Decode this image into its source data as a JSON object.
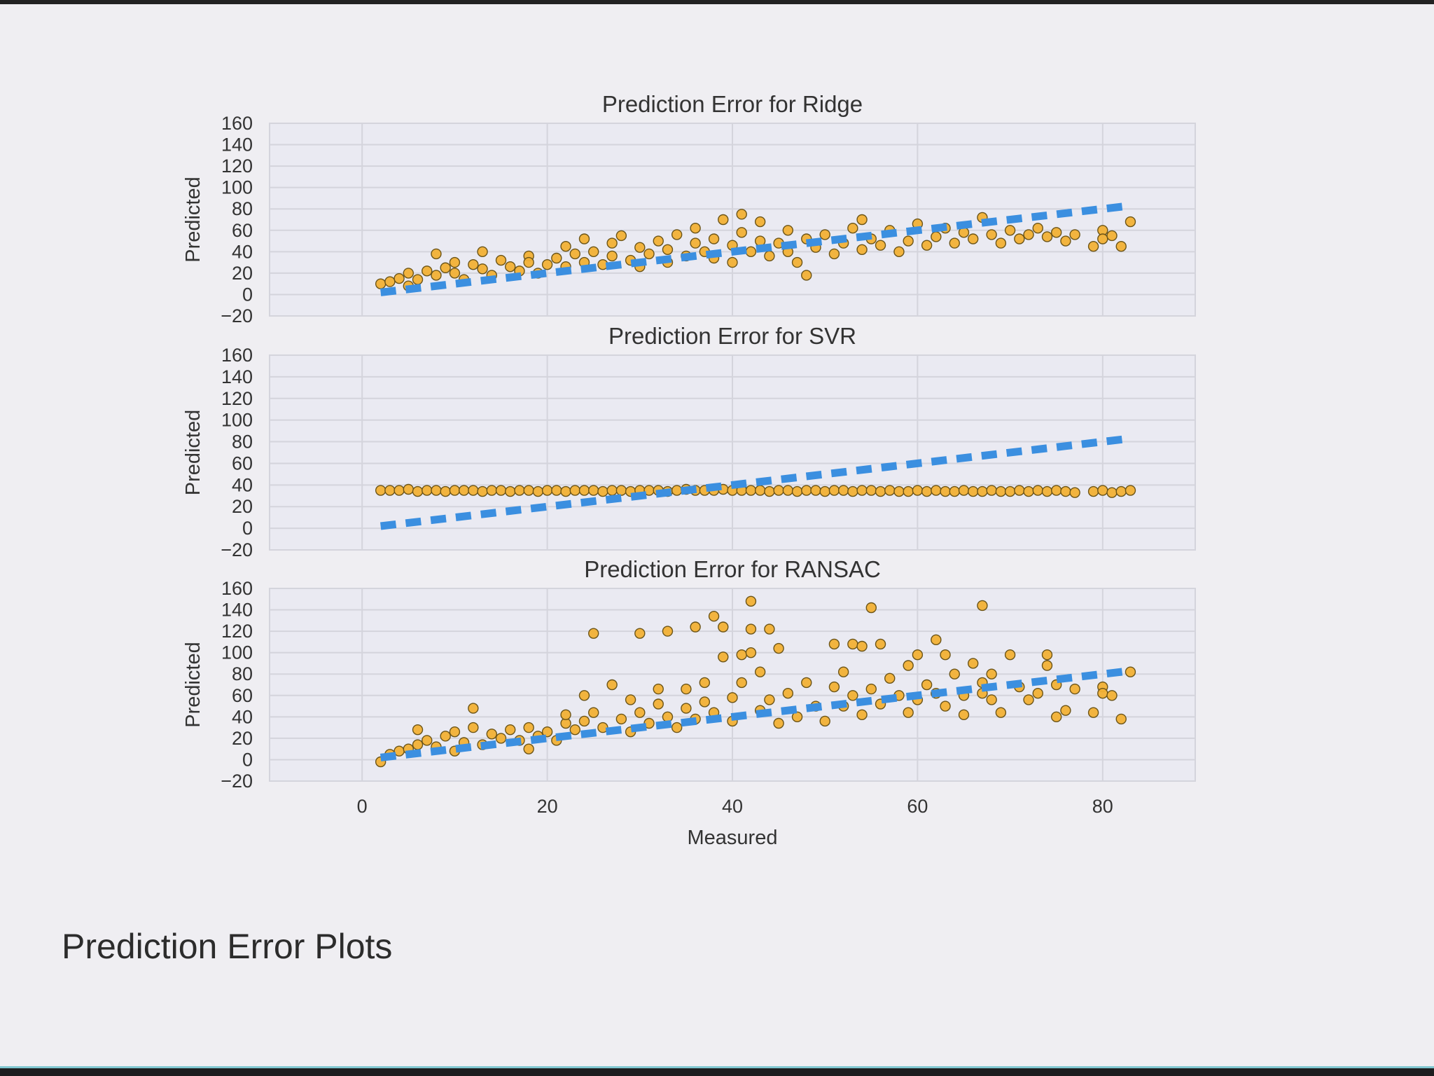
{
  "slide": {
    "caption": "Prediction Error Plots"
  },
  "colors": {
    "plot_bg": "#eaeaf2",
    "grid": "#d4d4dc",
    "point_fill": "#f2b135",
    "point_edge": "#6b5418",
    "identity_line": "#3b8fe0"
  },
  "chart_data": [
    {
      "type": "scatter",
      "title": "Prediction Error for Ridge",
      "xlabel": "",
      "ylabel": "Predicted",
      "xlim": [
        -10,
        90
      ],
      "ylim": [
        -20,
        160
      ],
      "xticks": [],
      "yticks": [
        "160",
        "140",
        "120",
        "100",
        "80",
        "60",
        "40",
        "20",
        "0",
        "−20"
      ],
      "grid": true,
      "identity_line": {
        "from": [
          2,
          2
        ],
        "to": [
          83,
          83
        ]
      },
      "points": [
        [
          2,
          10
        ],
        [
          3,
          12
        ],
        [
          4,
          15
        ],
        [
          5,
          20
        ],
        [
          5,
          8
        ],
        [
          6,
          14
        ],
        [
          7,
          22
        ],
        [
          8,
          38
        ],
        [
          8,
          18
        ],
        [
          9,
          25
        ],
        [
          10,
          20
        ],
        [
          10,
          30
        ],
        [
          11,
          14
        ],
        [
          12,
          28
        ],
        [
          13,
          24
        ],
        [
          13,
          40
        ],
        [
          14,
          18
        ],
        [
          15,
          32
        ],
        [
          16,
          26
        ],
        [
          17,
          22
        ],
        [
          18,
          36
        ],
        [
          18,
          30
        ],
        [
          19,
          20
        ],
        [
          20,
          28
        ],
        [
          21,
          34
        ],
        [
          22,
          26
        ],
        [
          22,
          45
        ],
        [
          23,
          38
        ],
        [
          24,
          30
        ],
        [
          24,
          52
        ],
        [
          25,
          40
        ],
        [
          26,
          28
        ],
        [
          27,
          48
        ],
        [
          27,
          36
        ],
        [
          28,
          55
        ],
        [
          29,
          32
        ],
        [
          30,
          44
        ],
        [
          30,
          26
        ],
        [
          31,
          38
        ],
        [
          32,
          50
        ],
        [
          33,
          42
        ],
        [
          33,
          30
        ],
        [
          34,
          56
        ],
        [
          35,
          36
        ],
        [
          36,
          48
        ],
        [
          36,
          62
        ],
        [
          37,
          40
        ],
        [
          38,
          34
        ],
        [
          38,
          52
        ],
        [
          39,
          70
        ],
        [
          40,
          46
        ],
        [
          40,
          30
        ],
        [
          41,
          58
        ],
        [
          41,
          75
        ],
        [
          42,
          40
        ],
        [
          43,
          50
        ],
        [
          43,
          68
        ],
        [
          44,
          36
        ],
        [
          45,
          48
        ],
        [
          46,
          40
        ],
        [
          46,
          60
        ],
        [
          47,
          30
        ],
        [
          48,
          52
        ],
        [
          48,
          18
        ],
        [
          49,
          44
        ],
        [
          50,
          56
        ],
        [
          51,
          38
        ],
        [
          52,
          48
        ],
        [
          53,
          62
        ],
        [
          54,
          42
        ],
        [
          54,
          70
        ],
        [
          55,
          52
        ],
        [
          56,
          46
        ],
        [
          57,
          60
        ],
        [
          58,
          40
        ],
        [
          59,
          50
        ],
        [
          60,
          66
        ],
        [
          61,
          46
        ],
        [
          62,
          54
        ],
        [
          63,
          62
        ],
        [
          64,
          48
        ],
        [
          65,
          58
        ],
        [
          66,
          52
        ],
        [
          67,
          72
        ],
        [
          68,
          56
        ],
        [
          69,
          48
        ],
        [
          70,
          60
        ],
        [
          71,
          52
        ],
        [
          72,
          56
        ],
        [
          73,
          62
        ],
        [
          74,
          54
        ],
        [
          75,
          58
        ],
        [
          76,
          50
        ],
        [
          77,
          56
        ],
        [
          79,
          45
        ],
        [
          80,
          60
        ],
        [
          80,
          52
        ],
        [
          81,
          55
        ],
        [
          82,
          45
        ],
        [
          83,
          68
        ]
      ]
    },
    {
      "type": "scatter",
      "title": "Prediction Error for SVR",
      "xlabel": "",
      "ylabel": "Predicted",
      "xlim": [
        -10,
        90
      ],
      "ylim": [
        -20,
        160
      ],
      "xticks": [],
      "yticks": [
        "160",
        "140",
        "120",
        "100",
        "80",
        "60",
        "40",
        "20",
        "0",
        "−20"
      ],
      "grid": true,
      "identity_line": {
        "from": [
          2,
          2
        ],
        "to": [
          83,
          83
        ]
      },
      "points": [
        [
          2,
          35
        ],
        [
          3,
          35
        ],
        [
          4,
          35
        ],
        [
          5,
          36
        ],
        [
          6,
          34
        ],
        [
          7,
          35
        ],
        [
          8,
          35
        ],
        [
          9,
          34
        ],
        [
          10,
          35
        ],
        [
          11,
          35
        ],
        [
          12,
          35
        ],
        [
          13,
          34
        ],
        [
          14,
          35
        ],
        [
          15,
          35
        ],
        [
          16,
          34
        ],
        [
          17,
          35
        ],
        [
          18,
          35
        ],
        [
          19,
          34
        ],
        [
          20,
          35
        ],
        [
          21,
          35
        ],
        [
          22,
          34
        ],
        [
          23,
          35
        ],
        [
          24,
          35
        ],
        [
          25,
          35
        ],
        [
          26,
          34
        ],
        [
          27,
          35
        ],
        [
          28,
          35
        ],
        [
          29,
          34
        ],
        [
          30,
          35
        ],
        [
          31,
          35
        ],
        [
          32,
          35
        ],
        [
          33,
          34
        ],
        [
          34,
          35
        ],
        [
          35,
          36
        ],
        [
          36,
          35
        ],
        [
          37,
          35
        ],
        [
          38,
          35
        ],
        [
          39,
          36
        ],
        [
          40,
          35
        ],
        [
          41,
          35
        ],
        [
          42,
          35
        ],
        [
          43,
          35
        ],
        [
          44,
          34
        ],
        [
          45,
          35
        ],
        [
          46,
          35
        ],
        [
          47,
          34
        ],
        [
          48,
          35
        ],
        [
          49,
          35
        ],
        [
          50,
          34
        ],
        [
          51,
          35
        ],
        [
          52,
          35
        ],
        [
          53,
          34
        ],
        [
          54,
          35
        ],
        [
          55,
          35
        ],
        [
          56,
          34
        ],
        [
          57,
          35
        ],
        [
          58,
          34
        ],
        [
          59,
          34
        ],
        [
          60,
          35
        ],
        [
          61,
          34
        ],
        [
          62,
          35
        ],
        [
          63,
          34
        ],
        [
          64,
          34
        ],
        [
          65,
          35
        ],
        [
          66,
          34
        ],
        [
          67,
          34
        ],
        [
          68,
          35
        ],
        [
          69,
          34
        ],
        [
          70,
          34
        ],
        [
          71,
          35
        ],
        [
          72,
          34
        ],
        [
          73,
          35
        ],
        [
          74,
          34
        ],
        [
          75,
          35
        ],
        [
          76,
          34
        ],
        [
          77,
          33
        ],
        [
          79,
          34
        ],
        [
          80,
          35
        ],
        [
          81,
          33
        ],
        [
          82,
          34
        ],
        [
          83,
          35
        ]
      ]
    },
    {
      "type": "scatter",
      "title": "Prediction Error for RANSAC",
      "xlabel": "Measured",
      "ylabel": "Predicted",
      "xlim": [
        -10,
        90
      ],
      "ylim": [
        -20,
        160
      ],
      "xticks": [
        "0",
        "20",
        "40",
        "60",
        "80"
      ],
      "yticks": [
        "160",
        "140",
        "120",
        "100",
        "80",
        "60",
        "40",
        "20",
        "0",
        "−20"
      ],
      "grid": true,
      "identity_line": {
        "from": [
          2,
          2
        ],
        "to": [
          83,
          83
        ]
      },
      "points": [
        [
          2,
          -2
        ],
        [
          3,
          5
        ],
        [
          4,
          8
        ],
        [
          5,
          10
        ],
        [
          6,
          28
        ],
        [
          6,
          14
        ],
        [
          7,
          18
        ],
        [
          8,
          12
        ],
        [
          9,
          22
        ],
        [
          10,
          8
        ],
        [
          10,
          26
        ],
        [
          11,
          16
        ],
        [
          12,
          30
        ],
        [
          12,
          48
        ],
        [
          13,
          14
        ],
        [
          14,
          24
        ],
        [
          15,
          20
        ],
        [
          16,
          28
        ],
        [
          17,
          18
        ],
        [
          18,
          10
        ],
        [
          18,
          30
        ],
        [
          19,
          22
        ],
        [
          20,
          26
        ],
        [
          21,
          18
        ],
        [
          22,
          34
        ],
        [
          22,
          42
        ],
        [
          23,
          28
        ],
        [
          24,
          60
        ],
        [
          24,
          36
        ],
        [
          25,
          118
        ],
        [
          25,
          44
        ],
        [
          26,
          30
        ],
        [
          27,
          70
        ],
        [
          28,
          38
        ],
        [
          29,
          26
        ],
        [
          29,
          56
        ],
        [
          30,
          118
        ],
        [
          30,
          44
        ],
        [
          31,
          34
        ],
        [
          32,
          52
        ],
        [
          32,
          66
        ],
        [
          33,
          40
        ],
        [
          33,
          120
        ],
        [
          34,
          30
        ],
        [
          35,
          66
        ],
        [
          35,
          48
        ],
        [
          36,
          124
        ],
        [
          36,
          38
        ],
        [
          37,
          72
        ],
        [
          37,
          54
        ],
        [
          38,
          134
        ],
        [
          38,
          44
        ],
        [
          39,
          124
        ],
        [
          39,
          96
        ],
        [
          40,
          58
        ],
        [
          40,
          36
        ],
        [
          41,
          98
        ],
        [
          41,
          72
        ],
        [
          42,
          148
        ],
        [
          42,
          122
        ],
        [
          42,
          100
        ],
        [
          43,
          82
        ],
        [
          43,
          46
        ],
        [
          44,
          122
        ],
        [
          44,
          56
        ],
        [
          45,
          104
        ],
        [
          45,
          34
        ],
        [
          46,
          62
        ],
        [
          47,
          40
        ],
        [
          48,
          72
        ],
        [
          49,
          50
        ],
        [
          50,
          36
        ],
        [
          51,
          108
        ],
        [
          51,
          68
        ],
        [
          52,
          82
        ],
        [
          52,
          50
        ],
        [
          53,
          108
        ],
        [
          53,
          60
        ],
        [
          54,
          106
        ],
        [
          54,
          42
        ],
        [
          55,
          142
        ],
        [
          55,
          66
        ],
        [
          56,
          108
        ],
        [
          56,
          52
        ],
        [
          57,
          76
        ],
        [
          58,
          60
        ],
        [
          59,
          88
        ],
        [
          59,
          44
        ],
        [
          60,
          98
        ],
        [
          60,
          56
        ],
        [
          61,
          70
        ],
        [
          62,
          112
        ],
        [
          62,
          62
        ],
        [
          63,
          98
        ],
        [
          63,
          50
        ],
        [
          64,
          80
        ],
        [
          65,
          60
        ],
        [
          65,
          42
        ],
        [
          66,
          90
        ],
        [
          67,
          144
        ],
        [
          67,
          62
        ],
        [
          67,
          72
        ],
        [
          68,
          56
        ],
        [
          68,
          80
        ],
        [
          69,
          44
        ],
        [
          70,
          98
        ],
        [
          71,
          68
        ],
        [
          72,
          56
        ],
        [
          73,
          62
        ],
        [
          74,
          98
        ],
        [
          74,
          88
        ],
        [
          75,
          40
        ],
        [
          75,
          70
        ],
        [
          76,
          46
        ],
        [
          77,
          66
        ],
        [
          79,
          44
        ],
        [
          80,
          68
        ],
        [
          80,
          62
        ],
        [
          81,
          60
        ],
        [
          82,
          38
        ],
        [
          83,
          82
        ]
      ]
    }
  ]
}
